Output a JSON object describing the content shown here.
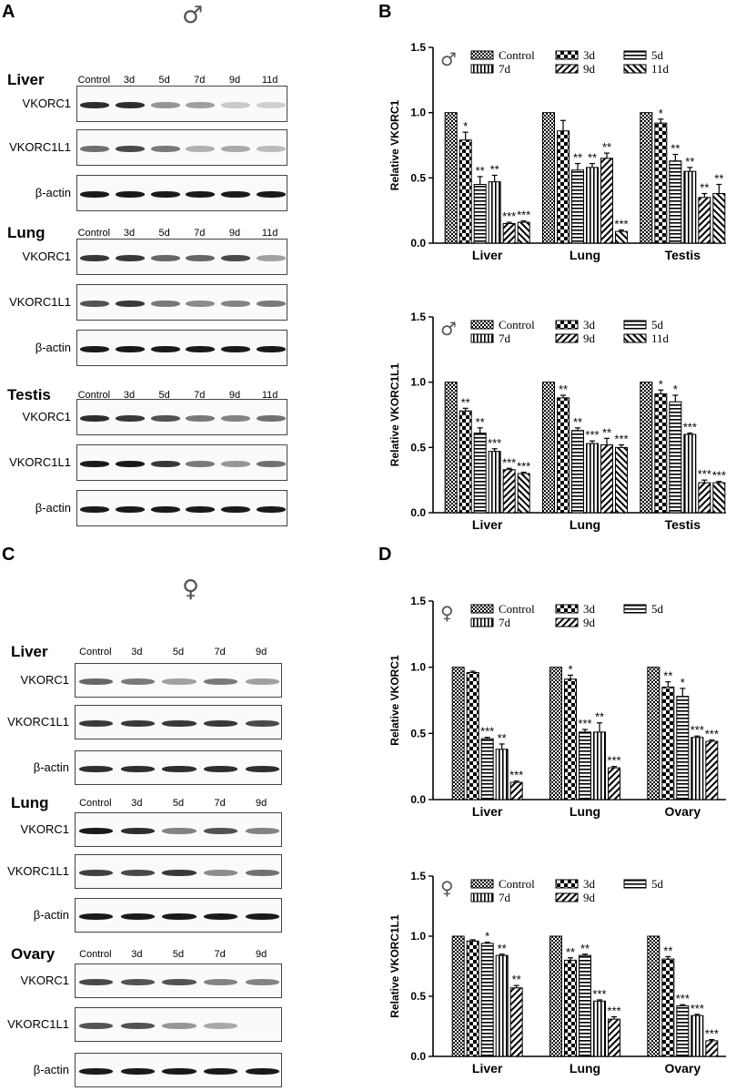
{
  "panels": {
    "a": "A",
    "b": "B",
    "c": "C",
    "d": "D"
  },
  "symbols": {
    "male": "♂",
    "female": "♀"
  },
  "blots_male": {
    "lanes": [
      "Control",
      "3d",
      "5d",
      "7d",
      "9d",
      "11d"
    ],
    "tissues": [
      {
        "name": "Liver",
        "rows": [
          "VKORC1",
          "VKORC1L1",
          "β-actin"
        ],
        "levels": [
          [
            0.9,
            0.9,
            0.35,
            0.3,
            0.08,
            0.05
          ],
          [
            0.55,
            0.75,
            0.5,
            0.2,
            0.25,
            0.15
          ],
          [
            1,
            1,
            1,
            1,
            1,
            1
          ]
        ]
      },
      {
        "name": "Lung",
        "rows": [
          "VKORC1",
          "VKORC1L1",
          "β-actin"
        ],
        "levels": [
          [
            0.85,
            0.85,
            0.6,
            0.6,
            0.75,
            0.3
          ],
          [
            0.7,
            0.85,
            0.5,
            0.4,
            0.45,
            0.5
          ],
          [
            1,
            1,
            1,
            1,
            1,
            1
          ]
        ]
      },
      {
        "name": "Testis",
        "rows": [
          "VKORC1",
          "VKORC1L1",
          "β-actin"
        ],
        "levels": [
          [
            0.9,
            0.85,
            0.7,
            0.5,
            0.45,
            0.55
          ],
          [
            1,
            1,
            0.85,
            0.5,
            0.35,
            0.55
          ],
          [
            1,
            1,
            1,
            1,
            1,
            1
          ]
        ]
      }
    ]
  },
  "blots_female": {
    "lanes": [
      "Control",
      "3d",
      "5d",
      "7d",
      "9d"
    ],
    "tissues": [
      {
        "name": "Liver",
        "rows": [
          "VKORC1",
          "VKORC1L1",
          "β-actin"
        ],
        "levels": [
          [
            0.6,
            0.5,
            0.3,
            0.5,
            0.3
          ],
          [
            0.85,
            0.85,
            0.85,
            0.85,
            0.75
          ],
          [
            0.9,
            0.9,
            0.9,
            0.9,
            0.9
          ]
        ]
      },
      {
        "name": "Lung",
        "rows": [
          "VKORC1",
          "VKORC1L1",
          "β-actin"
        ],
        "levels": [
          [
            1,
            0.9,
            0.45,
            0.7,
            0.45
          ],
          [
            0.8,
            0.75,
            0.85,
            0.4,
            0.55
          ],
          [
            1,
            1,
            1,
            1,
            1
          ]
        ]
      },
      {
        "name": "Ovary",
        "rows": [
          "VKORC1",
          "VKORC1L1",
          "β-actin"
        ],
        "levels": [
          [
            0.75,
            0.7,
            0.7,
            0.45,
            0.45
          ],
          [
            0.7,
            0.7,
            0.35,
            0.25,
            0
          ],
          [
            1,
            1,
            1,
            1,
            1
          ]
        ]
      }
    ]
  },
  "chart_data": [
    {
      "id": "B-top",
      "type": "bar",
      "symbol": "♂",
      "ylabel": "Relative VKORC1",
      "ylim": [
        0,
        1.5
      ],
      "yticks": [
        "0.0",
        "0.5",
        "1.0",
        "1.5"
      ],
      "categories": [
        "Liver",
        "Lung",
        "Testis"
      ],
      "series": [
        {
          "name": "Control",
          "values": [
            1,
            1,
            1
          ],
          "errors": [
            0,
            0,
            0
          ],
          "sig": [
            "",
            "",
            ""
          ],
          "pattern": "check"
        },
        {
          "name": "3d",
          "values": [
            0.79,
            0.86,
            0.92
          ],
          "errors": [
            0.06,
            0.08,
            0.03
          ],
          "sig": [
            "*",
            "",
            "*"
          ],
          "pattern": "bigcheck"
        },
        {
          "name": "5d",
          "values": [
            0.45,
            0.56,
            0.63
          ],
          "errors": [
            0.06,
            0.05,
            0.05
          ],
          "sig": [
            "**",
            "**",
            "**"
          ],
          "pattern": "hlines"
        },
        {
          "name": "7d",
          "values": [
            0.47,
            0.58,
            0.55
          ],
          "errors": [
            0.05,
            0.03,
            0.03
          ],
          "sig": [
            "**",
            "**",
            "**"
          ],
          "pattern": "vlines"
        },
        {
          "name": "9d",
          "values": [
            0.15,
            0.65,
            0.35
          ],
          "errors": [
            0.01,
            0.04,
            0.03
          ],
          "sig": [
            "***",
            "**",
            "**"
          ],
          "pattern": "diag"
        },
        {
          "name": "11d",
          "values": [
            0.16,
            0.09,
            0.38
          ],
          "errors": [
            0.01,
            0.01,
            0.07
          ],
          "sig": [
            "***",
            "***",
            "**"
          ],
          "pattern": "diag2"
        }
      ]
    },
    {
      "id": "B-bottom",
      "type": "bar",
      "symbol": "♂",
      "ylabel": "Relative VKORC1L1",
      "ylim": [
        0,
        1.5
      ],
      "yticks": [
        "0.0",
        "0.5",
        "1.0",
        "1.5"
      ],
      "categories": [
        "Liver",
        "Lung",
        "Testis"
      ],
      "series": [
        {
          "name": "Control",
          "values": [
            1,
            1,
            1
          ],
          "errors": [
            0,
            0,
            0
          ],
          "sig": [
            "",
            "",
            ""
          ],
          "pattern": "check"
        },
        {
          "name": "3d",
          "values": [
            0.78,
            0.88,
            0.91
          ],
          "errors": [
            0.02,
            0.02,
            0.03
          ],
          "sig": [
            "**",
            "**",
            "*"
          ],
          "pattern": "bigcheck"
        },
        {
          "name": "5d",
          "values": [
            0.61,
            0.63,
            0.85
          ],
          "errors": [
            0.04,
            0.02,
            0.05
          ],
          "sig": [
            "**",
            "**",
            "*"
          ],
          "pattern": "hlines"
        },
        {
          "name": "7d",
          "values": [
            0.47,
            0.53,
            0.6
          ],
          "errors": [
            0.02,
            0.02,
            0.01
          ],
          "sig": [
            "***",
            "***",
            "***"
          ],
          "pattern": "vlines"
        },
        {
          "name": "9d",
          "values": [
            0.33,
            0.52,
            0.23
          ],
          "errors": [
            0.01,
            0.05,
            0.02
          ],
          "sig": [
            "***",
            "**",
            "***"
          ],
          "pattern": "diag"
        },
        {
          "name": "11d",
          "values": [
            0.3,
            0.5,
            0.23
          ],
          "errors": [
            0.01,
            0.02,
            0.01
          ],
          "sig": [
            "***",
            "***",
            "***"
          ],
          "pattern": "diag2"
        }
      ]
    },
    {
      "id": "D-top",
      "type": "bar",
      "symbol": "♀",
      "ylabel": "Relative VKORC1",
      "ylim": [
        0,
        1.5
      ],
      "yticks": [
        "0.0",
        "0.5",
        "1.0",
        "1.5"
      ],
      "categories": [
        "Liver",
        "Lung",
        "Ovary"
      ],
      "series": [
        {
          "name": "Control",
          "values": [
            1,
            1,
            1
          ],
          "errors": [
            0,
            0,
            0
          ],
          "sig": [
            "",
            "",
            ""
          ],
          "pattern": "check"
        },
        {
          "name": "3d",
          "values": [
            0.96,
            0.91,
            0.85
          ],
          "errors": [
            0.01,
            0.03,
            0.04
          ],
          "sig": [
            "",
            "*",
            "**"
          ],
          "pattern": "bigcheck"
        },
        {
          "name": "5d",
          "values": [
            0.46,
            0.51,
            0.78
          ],
          "errors": [
            0.01,
            0.02,
            0.06
          ],
          "sig": [
            "***",
            "***",
            "*"
          ],
          "pattern": "hlines"
        },
        {
          "name": "7d",
          "values": [
            0.38,
            0.51,
            0.47
          ],
          "errors": [
            0.04,
            0.07,
            0.01
          ],
          "sig": [
            "**",
            "**",
            "***"
          ],
          "pattern": "vlines"
        },
        {
          "name": "9d",
          "values": [
            0.13,
            0.24,
            0.44
          ],
          "errors": [
            0.01,
            0.01,
            0.01
          ],
          "sig": [
            "***",
            "***",
            "***"
          ],
          "pattern": "diag"
        }
      ]
    },
    {
      "id": "D-bottom",
      "type": "bar",
      "symbol": "♀",
      "ylabel": "Relative VKORC1L1",
      "ylim": [
        0,
        1.5
      ],
      "yticks": [
        "0.0",
        "0.5",
        "1.0",
        "1.5"
      ],
      "categories": [
        "Liver",
        "Lung",
        "Ovary"
      ],
      "series": [
        {
          "name": "Control",
          "values": [
            1,
            1,
            1
          ],
          "errors": [
            0,
            0,
            0
          ],
          "sig": [
            "",
            "",
            ""
          ],
          "pattern": "check"
        },
        {
          "name": "3d",
          "values": [
            0.96,
            0.8,
            0.81
          ],
          "errors": [
            0.01,
            0.02,
            0.02
          ],
          "sig": [
            "",
            "**",
            "**"
          ],
          "pattern": "bigcheck"
        },
        {
          "name": "5d",
          "values": [
            0.94,
            0.84,
            0.42
          ],
          "errors": [
            0.01,
            0.01,
            0.01
          ],
          "sig": [
            "*",
            "**",
            "***"
          ],
          "pattern": "hlines"
        },
        {
          "name": "7d",
          "values": [
            0.84,
            0.46,
            0.34
          ],
          "errors": [
            0.01,
            0.01,
            0.01
          ],
          "sig": [
            "**",
            "***",
            "***"
          ],
          "pattern": "vlines"
        },
        {
          "name": "9d",
          "values": [
            0.57,
            0.31,
            0.13
          ],
          "errors": [
            0.02,
            0.02,
            0.01
          ],
          "sig": [
            "**",
            "***",
            "***"
          ],
          "pattern": "diag"
        }
      ]
    }
  ]
}
